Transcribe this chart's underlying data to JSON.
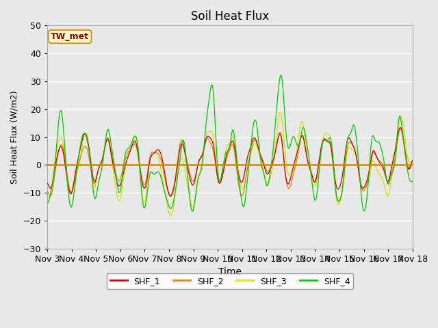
{
  "title": "Soil Heat Flux",
  "xlabel": "Time",
  "ylabel": "Soil Heat Flux (W/m2)",
  "ylim": [
    -30,
    50
  ],
  "background_color": "#e8e8e8",
  "grid_color": "white",
  "colors": {
    "SHF_1": "#cc0000",
    "SHF_2": "#dd8800",
    "SHF_3": "#dddd00",
    "SHF_4": "#00cc00"
  },
  "zero_line_color": "#cc8800",
  "annotation_text": "TW_met",
  "annotation_bg": "#ffffcc",
  "annotation_border": "#cc8800",
  "x_tick_labels": [
    "Nov 3",
    "Nov 4",
    "Nov 5",
    "Nov 6",
    "Nov 7",
    "Nov 8",
    "Nov 9",
    "Nov 10",
    "Nov 11",
    "Nov 12",
    "Nov 13",
    "Nov 14",
    "Nov 15",
    "Nov 16",
    "Nov 17",
    "Nov 18"
  ],
  "yticks": [
    -30,
    -20,
    -10,
    0,
    10,
    20,
    30,
    40,
    50
  ],
  "seed": 42
}
